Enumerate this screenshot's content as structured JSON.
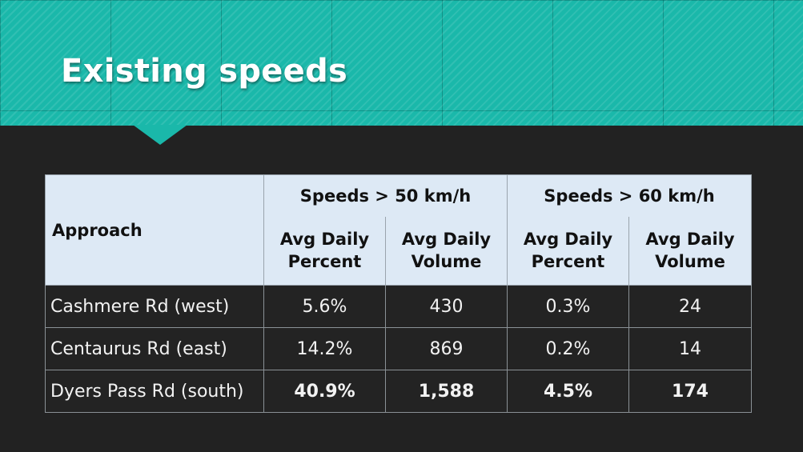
{
  "slide": {
    "title": "Existing speeds"
  },
  "table": {
    "approach_header": "Approach",
    "groups": [
      {
        "label": "Speeds > 50 km/h"
      },
      {
        "label": "Speeds > 60 km/h"
      }
    ],
    "sub_headers": [
      {
        "line1": "Avg Daily",
        "line2": "Percent"
      },
      {
        "line1": "Avg Daily",
        "line2": "Volume"
      },
      {
        "line1": "Avg Daily",
        "line2": "Percent"
      },
      {
        "line1": "Avg Daily",
        "line2": "Volume"
      }
    ],
    "rows": [
      {
        "name": "Cashmere Rd (west)",
        "values": [
          "5.6%",
          "430",
          "0.3%",
          "24"
        ]
      },
      {
        "name": "Centaurus Rd (east)",
        "values": [
          "14.2%",
          "869",
          "0.2%",
          "14"
        ]
      },
      {
        "name": "Dyers Pass Rd (south)",
        "values": [
          "40.9%",
          "1,588",
          "4.5%",
          "174"
        ]
      }
    ]
  },
  "colors": {
    "header_teal": "#1ab8aa",
    "background": "#222222",
    "table_header": "#dde9f5"
  }
}
